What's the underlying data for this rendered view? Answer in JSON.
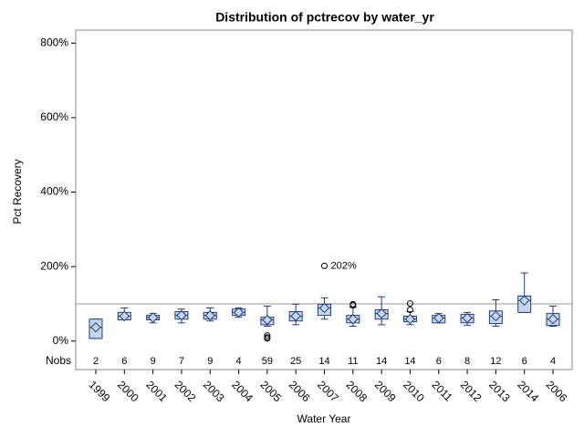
{
  "chart_data": {
    "type": "box",
    "title": "Distribution of pctrecov by water_yr",
    "x_label": "Water Year",
    "y_label": "Pct Recovery",
    "categories": [
      "1999",
      "2000",
      "2001",
      "2002",
      "2003",
      "2004",
      "2005",
      "2006",
      "2007",
      "2008",
      "2009",
      "2010",
      "2011",
      "2012",
      "2013",
      "2014",
      "2006"
    ],
    "boxes": [
      {
        "low": 7,
        "q1": 7,
        "median": 37,
        "q3": 59,
        "high": 59,
        "mean": 37,
        "outliers": []
      },
      {
        "low": 57,
        "q1": 57,
        "median": 67,
        "q3": 77,
        "high": 89,
        "mean": 67,
        "outliers": []
      },
      {
        "low": 49,
        "q1": 57,
        "median": 63,
        "q3": 69,
        "high": 74,
        "mean": 63,
        "outliers": []
      },
      {
        "low": 49,
        "q1": 59,
        "median": 69,
        "q3": 79,
        "high": 86,
        "mean": 69,
        "outliers": []
      },
      {
        "low": 54,
        "q1": 59,
        "median": 69,
        "q3": 77,
        "high": 89,
        "mean": 69,
        "outliers": []
      },
      {
        "low": 64,
        "q1": 69,
        "median": 77,
        "q3": 86,
        "high": 89,
        "mean": 77,
        "outliers": []
      },
      {
        "low": 40,
        "q1": 44,
        "median": 57,
        "q3": 64,
        "high": 94,
        "mean": 57,
        "outliers": [
          15,
          10,
          7
        ]
      },
      {
        "low": 44,
        "q1": 54,
        "median": 67,
        "q3": 79,
        "high": 99,
        "mean": 67,
        "outliers": []
      },
      {
        "low": 59,
        "q1": 69,
        "median": 89,
        "q3": 99,
        "high": 116,
        "mean": 89,
        "outliers": [
          202
        ],
        "outlier_labels": [
          "202%"
        ]
      },
      {
        "low": 40,
        "q1": 49,
        "median": 59,
        "q3": 69,
        "high": 91,
        "mean": 59,
        "outliers": [
          96,
          99
        ]
      },
      {
        "low": 44,
        "q1": 59,
        "median": 74,
        "q3": 84,
        "high": 119,
        "mean": 74,
        "outliers": []
      },
      {
        "low": 44,
        "q1": 52,
        "median": 59,
        "q3": 67,
        "high": 79,
        "mean": 59,
        "outliers": [
          84,
          101
        ]
      },
      {
        "low": 49,
        "q1": 49,
        "median": 62,
        "q3": 69,
        "high": 74,
        "mean": 62,
        "outliers": []
      },
      {
        "low": 42,
        "q1": 49,
        "median": 62,
        "q3": 72,
        "high": 77,
        "mean": 62,
        "outliers": []
      },
      {
        "low": 40,
        "q1": 47,
        "median": 67,
        "q3": 81,
        "high": 111,
        "mean": 67,
        "outliers": []
      },
      {
        "low": 77,
        "q1": 77,
        "median": 109,
        "q3": 121,
        "high": 183,
        "mean": 109,
        "outliers": []
      },
      {
        "low": 40,
        "q1": 42,
        "median": 59,
        "q3": 74,
        "high": 94,
        "mean": 59,
        "outliers": []
      }
    ],
    "nobs_label": "Nobs",
    "nobs": [
      2,
      6,
      9,
      7,
      9,
      4,
      59,
      25,
      14,
      11,
      14,
      14,
      6,
      8,
      12,
      6,
      4
    ],
    "reference_line": 100,
    "ylim": [
      -25,
      835
    ],
    "yticks": [
      {
        "value": 0,
        "label": "0%"
      },
      {
        "value": 200,
        "label": "200%"
      },
      {
        "value": 400,
        "label": "400%"
      },
      {
        "value": 600,
        "label": "600%"
      },
      {
        "value": 800,
        "label": "800%"
      }
    ],
    "box_color": "#c8d6ec",
    "line_color": "#1f3e7a"
  }
}
